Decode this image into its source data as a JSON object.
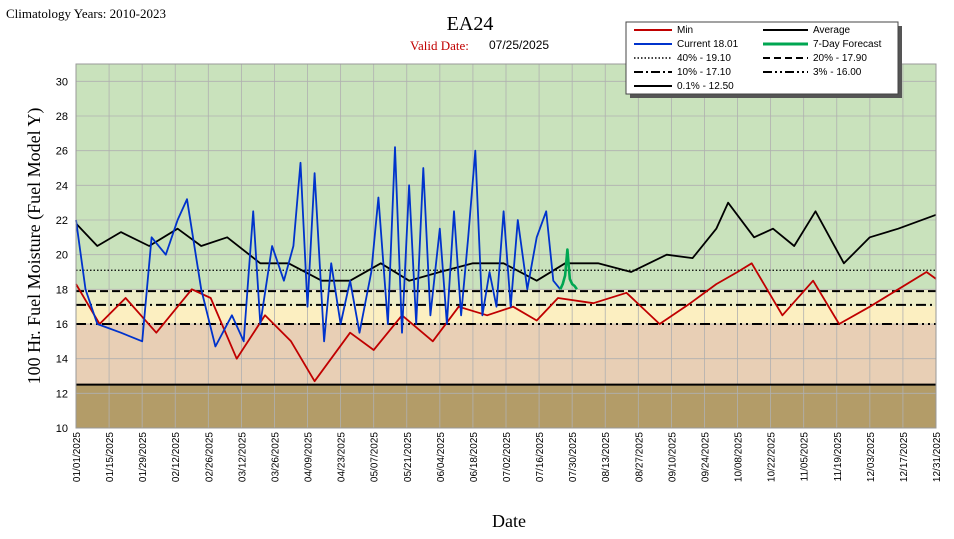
{
  "climatology": "Climatology Years: 2010-2023",
  "title": "EA24",
  "valid_date_label": "Valid Date:",
  "valid_date_value": "07/25/2025",
  "chart_data": {
    "type": "line",
    "title": "EA24",
    "xlabel": "Date",
    "ylabel": "100 Hr. Fuel Moisture  (Fuel Model Y)",
    "ylim": [
      10,
      31
    ],
    "xlim": [
      "01/01/2025",
      "12/31/2025"
    ],
    "yticks": [
      10,
      12,
      14,
      16,
      18,
      20,
      22,
      24,
      26,
      28,
      30
    ],
    "xticks": [
      "01/01/2025",
      "01/15/2025",
      "01/29/2025",
      "02/12/2025",
      "02/26/2025",
      "03/12/2025",
      "03/26/2025",
      "04/09/2025",
      "04/23/2025",
      "05/07/2025",
      "05/21/2025",
      "06/04/2025",
      "06/18/2025",
      "07/02/2025",
      "07/16/2025",
      "07/30/2025",
      "08/13/2025",
      "08/27/2025",
      "09/10/2025",
      "09/24/2025",
      "10/08/2025",
      "10/22/2025",
      "11/05/2025",
      "11/19/2025",
      "12/03/2025",
      "12/17/2025",
      "12/31/2025"
    ],
    "grid": true,
    "legend_position": "top-right",
    "bands": [
      {
        "from": 18.0,
        "to": 31.0,
        "color": "#c9e2bc"
      },
      {
        "from": 17.0,
        "to": 18.0,
        "color": "#ecedc6"
      },
      {
        "from": 16.0,
        "to": 17.0,
        "color": "#fcefc1"
      },
      {
        "from": 12.5,
        "to": 16.0,
        "color": "#e8cfb5"
      },
      {
        "from": 10.0,
        "to": 12.5,
        "color": "#b39c68"
      }
    ],
    "thresholds": [
      {
        "label": "40% -  19.10",
        "value": 19.1,
        "style": "dotted"
      },
      {
        "label": "20% -  17.90",
        "value": 17.9,
        "style": "dashed"
      },
      {
        "label": "10% -  17.10",
        "value": 17.1,
        "style": "dashdot"
      },
      {
        "label": "3% -  16.00",
        "value": 16.0,
        "style": "dashdotdot"
      },
      {
        "label": "0.1% -  12.50",
        "value": 12.5,
        "style": "solid"
      }
    ],
    "series": [
      {
        "name": "Min",
        "color": "#c00000",
        "x": [
          "01/01/2025",
          "01/11/2025",
          "01/22/2025",
          "02/04/2025",
          "02/19/2025",
          "02/27/2025",
          "03/10/2025",
          "03/22/2025",
          "04/02/2025",
          "04/12/2025",
          "04/27/2025",
          "05/07/2025",
          "05/19/2025",
          "06/01/2025",
          "06/12/2025",
          "06/24/2025",
          "07/05/2025",
          "07/15/2025",
          "07/24/2025",
          "08/08/2025",
          "08/22/2025",
          "09/05/2025",
          "09/18/2025",
          "09/29/2025",
          "10/08/2025",
          "10/14/2025",
          "10/27/2025",
          "11/09/2025",
          "11/20/2025",
          "12/03/2025",
          "12/15/2025",
          "12/27/2025",
          "12/31/2025"
        ],
        "values": [
          18.3,
          16.0,
          17.5,
          15.5,
          18.0,
          17.5,
          14.0,
          16.5,
          15.0,
          12.7,
          15.5,
          14.5,
          16.5,
          15.0,
          17.0,
          16.5,
          17.0,
          16.2,
          17.5,
          17.2,
          17.8,
          16.0,
          17.2,
          18.3,
          19.0,
          19.5,
          16.5,
          18.5,
          16.0,
          17.0,
          18.0,
          19.0,
          18.6
        ]
      },
      {
        "name": "Average",
        "color": "#000000",
        "x": [
          "01/01/2025",
          "01/10/2025",
          "01/20/2025",
          "02/01/2025",
          "02/13/2025",
          "02/23/2025",
          "03/06/2025",
          "03/20/2025",
          "04/01/2025",
          "04/15/2025",
          "04/27/2025",
          "05/10/2025",
          "05/22/2025",
          "06/04/2025",
          "06/18/2025",
          "07/01/2025",
          "07/15/2025",
          "07/27/2025",
          "08/10/2025",
          "08/24/2025",
          "09/08/2025",
          "09/19/2025",
          "09/29/2025",
          "10/04/2025",
          "10/15/2025",
          "10/23/2025",
          "11/01/2025",
          "11/10/2025",
          "11/22/2025",
          "12/03/2025",
          "12/15/2025",
          "12/31/2025"
        ],
        "values": [
          21.8,
          20.5,
          21.3,
          20.5,
          21.5,
          20.5,
          21.0,
          19.5,
          19.5,
          18.5,
          18.5,
          19.5,
          18.5,
          19.0,
          19.5,
          19.5,
          18.5,
          19.5,
          19.5,
          19.0,
          20.0,
          19.8,
          21.5,
          23.0,
          21.0,
          21.5,
          20.5,
          22.5,
          19.5,
          21.0,
          21.5,
          22.3
        ]
      },
      {
        "name": "Current 18.01",
        "color": "#0033cc",
        "x": [
          "01/01/2025",
          "01/05/2025",
          "01/10/2025",
          "01/20/2025",
          "01/29/2025",
          "02/02/2025",
          "02/08/2025",
          "02/13/2025",
          "02/17/2025",
          "02/23/2025",
          "03/01/2025",
          "03/08/2025",
          "03/13/2025",
          "03/17/2025",
          "03/20/2025",
          "03/25/2025",
          "03/30/2025",
          "04/03/2025",
          "04/06/2025",
          "04/09/2025",
          "04/12/2025",
          "04/16/2025",
          "04/19/2025",
          "04/23/2025",
          "04/27/2025",
          "05/01/2025",
          "05/06/2025",
          "05/09/2025",
          "05/13/2025",
          "05/16/2025",
          "05/19/2025",
          "05/22/2025",
          "05/25/2025",
          "05/28/2025",
          "05/31/2025",
          "06/04/2025",
          "06/07/2025",
          "06/10/2025",
          "06/13/2025",
          "06/16/2025",
          "06/19/2025",
          "06/22/2025",
          "06/25/2025",
          "06/28/2025",
          "07/01/2025",
          "07/04/2025",
          "07/07/2025",
          "07/11/2025",
          "07/15/2025",
          "07/19/2025",
          "07/22/2025",
          "07/25/2025"
        ],
        "values": [
          22.0,
          18.0,
          16.0,
          15.5,
          15.0,
          21.0,
          20.0,
          22.0,
          23.2,
          18.0,
          14.7,
          16.5,
          15.0,
          22.5,
          16.0,
          20.5,
          18.5,
          20.5,
          25.3,
          17.0,
          24.7,
          15.0,
          19.5,
          16.0,
          18.5,
          15.5,
          19.0,
          23.3,
          16.0,
          26.2,
          15.5,
          24.0,
          16.0,
          25.0,
          16.5,
          21.5,
          16.0,
          22.5,
          16.5,
          21.0,
          26.0,
          16.5,
          19.0,
          17.0,
          22.5,
          17.0,
          22.0,
          18.0,
          21.0,
          22.5,
          18.5,
          18.0
        ]
      },
      {
        "name": "7-Day Forecast",
        "color": "#00a651",
        "x": [
          "07/25/2025",
          "07/26/2025",
          "07/27/2025",
          "07/28/2025",
          "07/29/2025",
          "07/30/2025",
          "07/31/2025",
          "08/01/2025"
        ],
        "values": [
          18.0,
          18.3,
          18.8,
          20.3,
          18.6,
          18.3,
          18.2,
          18.0
        ]
      }
    ]
  },
  "axis": {
    "xlabel": "Date",
    "ylabel": "100 Hr. Fuel Moisture  (Fuel Model Y)"
  },
  "legend": {
    "min": "Min",
    "average": "Average",
    "current": "Current 18.01",
    "forecast": "7-Day Forecast",
    "p40": "40% -  19.10",
    "p20": "20% -  17.90",
    "p10": "10% -  17.10",
    "p3": "3% -  16.00",
    "p01": "0.1% -  12.50"
  }
}
